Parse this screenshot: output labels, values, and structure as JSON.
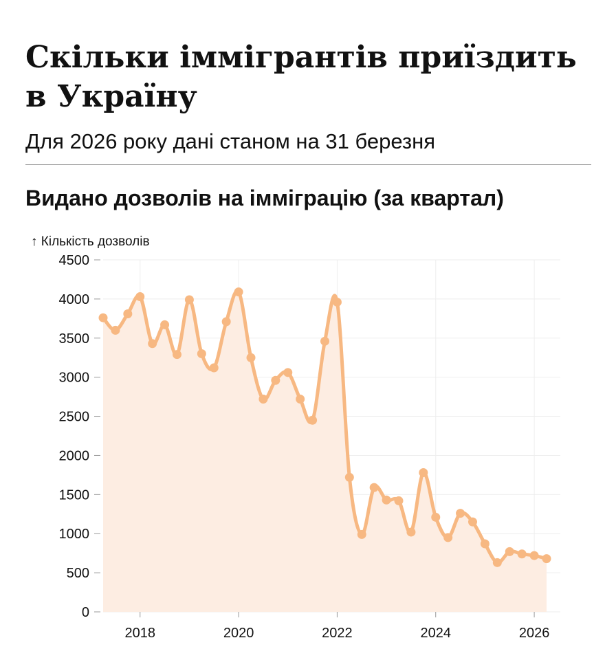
{
  "title": "Скільки іммігрантів приїздить в Україну",
  "subtitle": "Для 2026 року дані станом на 31 березня",
  "chart_title": "Видано дозволів на імміграцію (за квартал)",
  "colors": {
    "line": "#f7b882",
    "area": "#fdede2",
    "grid": "#eeeeee"
  },
  "chart_data": {
    "type": "area",
    "ylabel": "↑ Кількість дозволів",
    "xlabel": "",
    "ylim": [
      0,
      4500
    ],
    "yticks": [
      0,
      500,
      1000,
      1500,
      2000,
      2500,
      3000,
      3500,
      4000,
      4500
    ],
    "xlim": [
      2017.25,
      2026.25
    ],
    "xticks": [
      "2018",
      "2020",
      "2022",
      "2024",
      "2026"
    ],
    "grid": true,
    "x": [
      2017.25,
      2017.5,
      2017.75,
      2018.0,
      2018.25,
      2018.5,
      2018.75,
      2019.0,
      2019.25,
      2019.5,
      2019.75,
      2020.0,
      2020.25,
      2020.5,
      2020.75,
      2021.0,
      2021.25,
      2021.5,
      2021.75,
      2022.0,
      2022.25,
      2022.5,
      2022.75,
      2023.0,
      2023.25,
      2023.5,
      2023.75,
      2024.0,
      2024.25,
      2024.5,
      2024.75,
      2025.0,
      2025.25,
      2025.5,
      2025.75,
      2026.0,
      2026.25
    ],
    "values": [
      3760,
      3600,
      3810,
      4030,
      3430,
      3670,
      3290,
      3990,
      3300,
      3120,
      3710,
      4090,
      3250,
      2720,
      2960,
      3060,
      2720,
      2450,
      3460,
      3960,
      1720,
      990,
      1590,
      1430,
      1420,
      1020,
      1780,
      1210,
      950,
      1260,
      1150,
      870,
      630,
      770,
      740,
      720,
      680
    ]
  }
}
